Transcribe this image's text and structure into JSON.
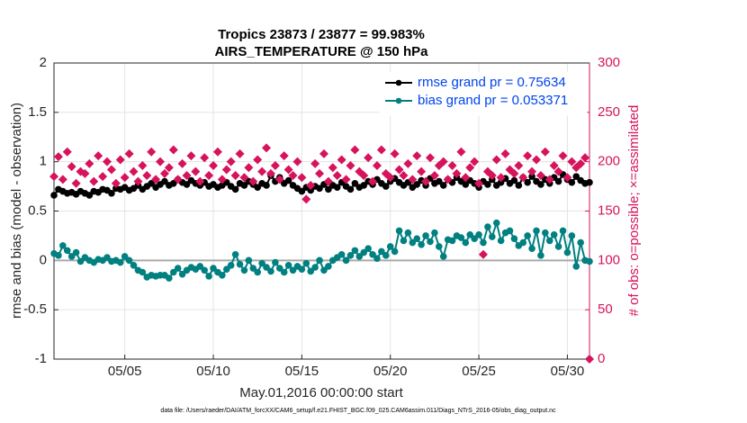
{
  "chart_data": {
    "type": "line",
    "title": "Tropics 23873 / 23877 = 99.983%",
    "subtitle": "AIRS_TEMPERATURE @ 150 hPa",
    "xlabel": "May.01,2016 00:00:00 start",
    "ylabel": "rmse and bias (model - observation)",
    "y2label": "# of obs: o=possible; ×=assimilated",
    "footnote": "data file: /Users/raeder/DAI/ATM_forcXX/CAM6_setup/f.e21.FHIST_BGC.f09_025.CAM6assim.011/Diags_NTrS_2016-05/obs_diag_output.nc",
    "xlim": [
      1,
      31.25
    ],
    "xticks": [
      {
        "value": 5,
        "label": "05/05"
      },
      {
        "value": 10,
        "label": "05/10"
      },
      {
        "value": 15,
        "label": "05/15"
      },
      {
        "value": 20,
        "label": "05/20"
      },
      {
        "value": 25,
        "label": "05/25"
      },
      {
        "value": 30,
        "label": "05/30"
      }
    ],
    "ylim": [
      -1,
      2
    ],
    "yticks": [
      -1,
      -0.5,
      0,
      0.5,
      1,
      1.5,
      2
    ],
    "y2lim": [
      0,
      300
    ],
    "y2ticks": [
      0,
      50,
      100,
      150,
      200,
      250,
      300
    ],
    "grid": true,
    "legend": "upper right",
    "x": [
      1,
      1.25,
      1.5,
      1.75,
      2,
      2.25,
      2.5,
      2.75,
      3,
      3.25,
      3.5,
      3.75,
      4,
      4.25,
      4.5,
      4.75,
      5,
      5.25,
      5.5,
      5.75,
      6,
      6.25,
      6.5,
      6.75,
      7,
      7.25,
      7.5,
      7.75,
      8,
      8.25,
      8.5,
      8.75,
      9,
      9.25,
      9.5,
      9.75,
      10,
      10.25,
      10.5,
      10.75,
      11,
      11.25,
      11.5,
      11.75,
      12,
      12.25,
      12.5,
      12.75,
      13,
      13.25,
      13.5,
      13.75,
      14,
      14.25,
      14.5,
      14.75,
      15,
      15.25,
      15.5,
      15.75,
      16,
      16.25,
      16.5,
      16.75,
      17,
      17.25,
      17.5,
      17.75,
      18,
      18.25,
      18.5,
      18.75,
      19,
      19.25,
      19.5,
      19.75,
      20,
      20.25,
      20.5,
      20.75,
      21,
      21.25,
      21.5,
      21.75,
      22,
      22.25,
      22.5,
      22.75,
      23,
      23.25,
      23.5,
      23.75,
      24,
      24.25,
      24.5,
      24.75,
      25,
      25.25,
      25.5,
      25.75,
      26,
      26.25,
      26.5,
      26.75,
      27,
      27.25,
      27.5,
      27.75,
      28,
      28.25,
      28.5,
      28.75,
      29,
      29.25,
      29.5,
      29.75,
      30,
      30.25,
      30.5,
      30.75,
      31,
      31.25
    ],
    "series": [
      {
        "name": "rmse grand pr = 0.75634",
        "color": "#000000",
        "marker": "circle",
        "values": [
          0.66,
          0.72,
          0.7,
          0.68,
          0.69,
          0.67,
          0.7,
          0.68,
          0.66,
          0.7,
          0.69,
          0.72,
          0.71,
          0.68,
          0.73,
          0.72,
          0.74,
          0.71,
          0.73,
          0.76,
          0.72,
          0.75,
          0.78,
          0.74,
          0.77,
          0.8,
          0.76,
          0.78,
          0.82,
          0.79,
          0.77,
          0.81,
          0.78,
          0.76,
          0.79,
          0.75,
          0.77,
          0.74,
          0.76,
          0.79,
          0.75,
          0.72,
          0.78,
          0.76,
          0.8,
          0.77,
          0.74,
          0.78,
          0.76,
          0.86,
          0.8,
          0.84,
          0.78,
          0.81,
          0.76,
          0.73,
          0.7,
          0.74,
          0.71,
          0.75,
          0.73,
          0.77,
          0.72,
          0.76,
          0.74,
          0.79,
          0.75,
          0.72,
          0.78,
          0.74,
          0.76,
          0.8,
          0.77,
          0.82,
          0.78,
          0.75,
          0.8,
          0.83,
          0.79,
          0.76,
          0.79,
          0.74,
          0.77,
          0.81,
          0.76,
          0.83,
          0.78,
          0.8,
          0.76,
          0.82,
          0.79,
          0.84,
          0.8,
          0.77,
          0.81,
          0.78,
          0.74,
          0.8,
          0.77,
          0.82,
          0.76,
          0.79,
          0.83,
          0.78,
          0.81,
          0.76,
          0.84,
          0.79,
          0.85,
          0.8,
          0.77,
          0.82,
          0.78,
          0.84,
          0.8,
          0.87,
          0.82,
          0.79,
          0.85,
          0.81,
          0.78,
          0.79
        ]
      },
      {
        "name": "bias grand pr = 0.053371",
        "color": "#008080",
        "marker": "circle",
        "values": [
          0.07,
          0.05,
          0.15,
          0.1,
          0.04,
          0.08,
          -0.01,
          0.03,
          0.0,
          -0.02,
          0.01,
          0.0,
          0.03,
          -0.01,
          0.0,
          -0.02,
          0.04,
          0.0,
          -0.05,
          -0.1,
          -0.12,
          -0.17,
          -0.15,
          -0.16,
          -0.15,
          -0.15,
          -0.18,
          -0.12,
          -0.08,
          -0.14,
          -0.1,
          -0.07,
          -0.09,
          -0.06,
          -0.1,
          -0.16,
          -0.08,
          -0.12,
          -0.15,
          -0.09,
          -0.05,
          0.06,
          -0.04,
          -0.1,
          0.0,
          -0.08,
          -0.12,
          -0.03,
          -0.07,
          -0.11,
          -0.02,
          -0.08,
          -0.12,
          -0.05,
          -0.1,
          -0.06,
          -0.09,
          -0.03,
          -0.11,
          -0.07,
          0.0,
          -0.1,
          -0.06,
          0.0,
          0.03,
          0.06,
          0.0,
          0.05,
          0.1,
          0.04,
          0.08,
          0.12,
          0.06,
          0.02,
          0.09,
          0.05,
          0.14,
          0.09,
          0.3,
          0.2,
          0.28,
          0.18,
          0.22,
          0.16,
          0.25,
          0.19,
          0.28,
          0.14,
          0.04,
          0.21,
          0.2,
          0.25,
          0.23,
          0.18,
          0.26,
          0.22,
          0.26,
          0.18,
          0.34,
          0.24,
          0.38,
          0.2,
          0.28,
          0.3,
          0.22,
          0.15,
          0.18,
          0.25,
          0.12,
          0.3,
          0.05,
          0.28,
          0.2,
          0.26,
          0.14,
          0.3,
          0.08,
          0.25,
          -0.06,
          0.18,
          0.0,
          -0.01
        ]
      },
      {
        "axis": "y2",
        "color": "#d6135c",
        "marker": "diamond",
        "line": false,
        "values": [
          185,
          205,
          182,
          210,
          195,
          178,
          190,
          188,
          198,
          180,
          206,
          185,
          200,
          192,
          178,
          202,
          184,
          208,
          190,
          180,
          196,
          186,
          210,
          182,
          200,
          188,
          194,
          212,
          182,
          198,
          186,
          206,
          190,
          180,
          204,
          186,
          196,
          210,
          182,
          192,
          200,
          186,
          208,
          184,
          194,
          180,
          202,
          190,
          214,
          188,
          196,
          182,
          206,
          192,
          186,
          200,
          184,
          162,
          176,
          198,
          188,
          208,
          180,
          194,
          186,
          202,
          182,
          196,
          212,
          190,
          186,
          204,
          180,
          196,
          212,
          188,
          184,
          208,
          192,
          186,
          198,
          182,
          206,
          190,
          180,
          204,
          186,
          196,
          200,
          182,
          196,
          188,
          210,
          184,
          194,
          200,
          178,
          106,
          190,
          186,
          202,
          184,
          208,
          192,
          188,
          196,
          184,
          206,
          190,
          202,
          186,
          210,
          182,
          196,
          190,
          206,
          184,
          200,
          194,
          198,
          204,
          0
        ]
      }
    ]
  }
}
